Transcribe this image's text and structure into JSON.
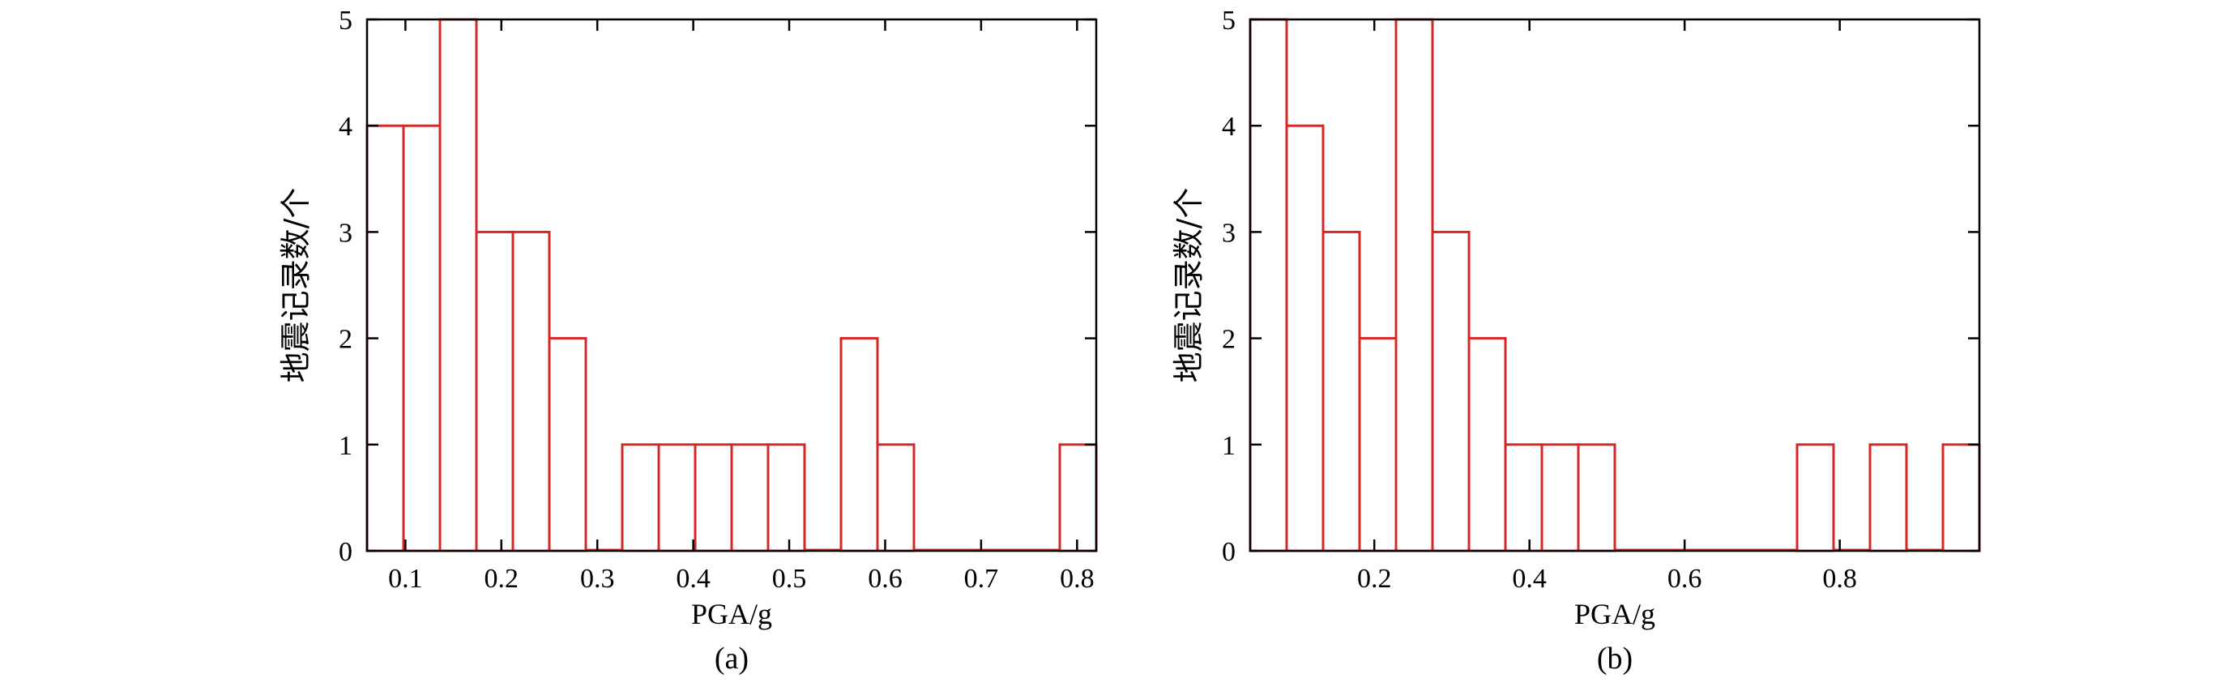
{
  "chart_data": [
    {
      "type": "bar",
      "subtype": "histogram",
      "panel_label": "(a)",
      "xlabel": "PGA/g",
      "ylabel": "地震记录数/个",
      "xlim": [
        0.06,
        0.82
      ],
      "ylim": [
        0,
        5
      ],
      "xticks": [
        0.1,
        0.2,
        0.3,
        0.4,
        0.5,
        0.6,
        0.7,
        0.8
      ],
      "xtick_labels": [
        "0.1",
        "0.2",
        "0.3",
        "0.4",
        "0.5",
        "0.6",
        "0.7",
        "0.8"
      ],
      "yticks": [
        0,
        1,
        2,
        3,
        4,
        5
      ],
      "ytick_labels": [
        "0",
        "1",
        "2",
        "3",
        "4",
        "5"
      ],
      "bin_edges": [
        0.06,
        0.098,
        0.136,
        0.174,
        0.212,
        0.25,
        0.288,
        0.326,
        0.364,
        0.402,
        0.44,
        0.478,
        0.516,
        0.554,
        0.592,
        0.63,
        0.668,
        0.706,
        0.744,
        0.782,
        0.82
      ],
      "values": [
        4,
        4,
        5,
        3,
        3,
        2,
        0,
        1,
        1,
        1,
        1,
        1,
        0,
        2,
        1,
        0,
        0,
        0,
        0,
        1
      ],
      "bar_color": "#d62728",
      "grid": false
    },
    {
      "type": "bar",
      "subtype": "histogram",
      "panel_label": "(b)",
      "xlabel": "PGA/g",
      "ylabel": "地震记录数/个",
      "xlim": [
        0.04,
        0.98
      ],
      "ylim": [
        0,
        5
      ],
      "xticks": [
        0.2,
        0.4,
        0.6,
        0.8
      ],
      "xtick_labels": [
        "0.2",
        "0.4",
        "0.6",
        "0.8"
      ],
      "yticks": [
        0,
        1,
        2,
        3,
        4,
        5
      ],
      "ytick_labels": [
        "0",
        "1",
        "2",
        "3",
        "4",
        "5"
      ],
      "bin_edges": [
        0.04,
        0.087,
        0.134,
        0.181,
        0.228,
        0.275,
        0.322,
        0.369,
        0.416,
        0.463,
        0.51,
        0.557,
        0.604,
        0.651,
        0.698,
        0.745,
        0.792,
        0.839,
        0.886,
        0.933,
        0.98
      ],
      "values": [
        5,
        4,
        3,
        2,
        5,
        3,
        2,
        1,
        1,
        1,
        0,
        0,
        0,
        0,
        0,
        1,
        0,
        1,
        0,
        1
      ],
      "bar_color": "#d62728",
      "grid": false
    }
  ]
}
